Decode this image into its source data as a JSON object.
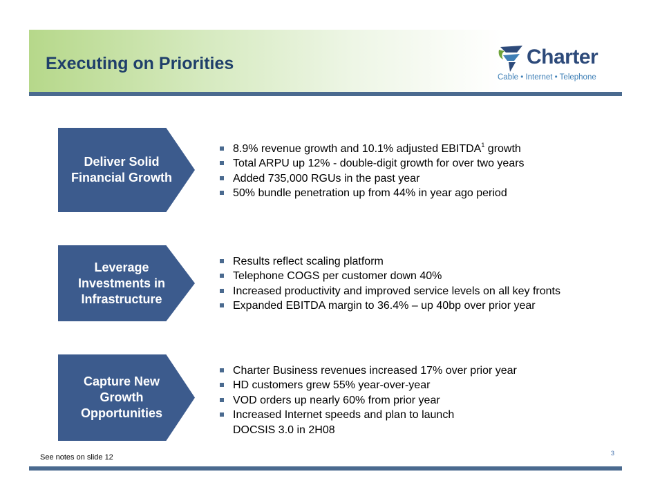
{
  "slide": {
    "title": "Executing on Priorities",
    "page_number": "3",
    "footnote": "See notes on slide 12"
  },
  "logo": {
    "brand": "Charter",
    "tagline": "Cable • Internet • Telephone",
    "colors": {
      "primary": "#2d4a7a",
      "accent": "#3e7fb6",
      "leaf": "#6fa33a"
    }
  },
  "colors": {
    "title": "#1f3f6a",
    "arrow_fill": "#3c5b8d",
    "rule": "#4a6a8f",
    "header_gradient_start": "#b6d88a"
  },
  "sections": [
    {
      "label": "Deliver Solid\nFinancial Growth",
      "bullets": [
        {
          "pre": "8.9% revenue growth and 10.1% adjusted EBITDA",
          "sup": "1",
          "post": " growth"
        },
        {
          "text": "Total ARPU up 12% - double-digit growth for over two years"
        },
        {
          "text": "Added 735,000 RGUs in the past year"
        },
        {
          "text": "50% bundle penetration up from 44% in year ago period"
        }
      ]
    },
    {
      "label": "Leverage\nInvestments in\nInfrastructure",
      "bullets": [
        {
          "text": "Results reflect scaling platform"
        },
        {
          "text": "Telephone COGS per customer down 40%"
        },
        {
          "text": "Increased productivity and improved service levels on all key fronts"
        },
        {
          "text": "Expanded EBITDA margin to 36.4% – up 40bp over prior year"
        }
      ]
    },
    {
      "label": "Capture New\nGrowth\nOpportunities",
      "bullets": [
        {
          "text": "Charter Business revenues increased 17% over prior year"
        },
        {
          "text": "HD customers grew 55% year-over-year"
        },
        {
          "text": "VOD orders up nearly 60% from prior year"
        },
        {
          "text": "Increased Internet speeds and plan to launch"
        }
      ],
      "continuation": "DOCSIS 3.0 in 2H08"
    }
  ]
}
